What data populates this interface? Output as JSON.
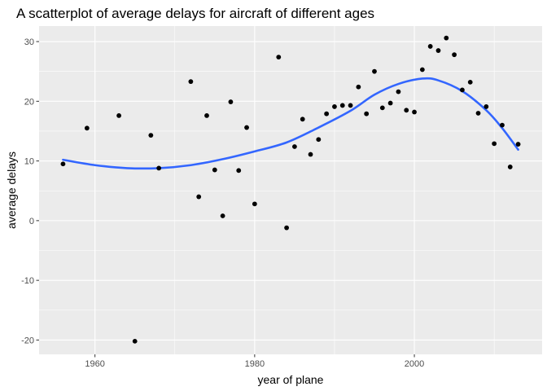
{
  "chart_data": {
    "type": "scatter",
    "title": "A scatterplot of average delays for aircraft of different ages",
    "xlabel": "year of plane",
    "ylabel": "average delays",
    "xlim": [
      1953,
      2016
    ],
    "ylim": [
      -22.4,
      32.6
    ],
    "x_ticks": [
      1960,
      1980,
      2000
    ],
    "x_tick_labels": [
      "1960",
      "1980",
      "2000"
    ],
    "y_ticks": [
      -20,
      -10,
      0,
      10,
      20,
      30
    ],
    "y_tick_labels": [
      "-20",
      "-10",
      "0",
      "10",
      "20",
      "30"
    ],
    "grid": true,
    "legend": "none",
    "points": [
      {
        "x": 1956,
        "y": 9.5
      },
      {
        "x": 1959,
        "y": 15.5
      },
      {
        "x": 1963,
        "y": 17.6
      },
      {
        "x": 1965,
        "y": -20.2
      },
      {
        "x": 1967,
        "y": 14.3
      },
      {
        "x": 1968,
        "y": 8.8
      },
      {
        "x": 1972,
        "y": 23.3
      },
      {
        "x": 1973,
        "y": 4.0
      },
      {
        "x": 1974,
        "y": 17.6
      },
      {
        "x": 1975,
        "y": 8.5
      },
      {
        "x": 1976,
        "y": 0.8
      },
      {
        "x": 1977,
        "y": 19.9
      },
      {
        "x": 1978,
        "y": 8.4
      },
      {
        "x": 1979,
        "y": 15.6
      },
      {
        "x": 1980,
        "y": 2.8
      },
      {
        "x": 1983,
        "y": 27.4
      },
      {
        "x": 1984,
        "y": -1.2
      },
      {
        "x": 1985,
        "y": 12.4
      },
      {
        "x": 1986,
        "y": 17.0
      },
      {
        "x": 1987,
        "y": 11.1
      },
      {
        "x": 1988,
        "y": 13.6
      },
      {
        "x": 1989,
        "y": 17.9
      },
      {
        "x": 1990,
        "y": 19.1
      },
      {
        "x": 1991,
        "y": 19.3
      },
      {
        "x": 1992,
        "y": 19.3
      },
      {
        "x": 1993,
        "y": 22.4
      },
      {
        "x": 1994,
        "y": 17.9
      },
      {
        "x": 1995,
        "y": 25.0
      },
      {
        "x": 1996,
        "y": 18.9
      },
      {
        "x": 1997,
        "y": 19.7
      },
      {
        "x": 1998,
        "y": 21.6
      },
      {
        "x": 1999,
        "y": 18.5
      },
      {
        "x": 2000,
        "y": 18.2
      },
      {
        "x": 2001,
        "y": 25.3
      },
      {
        "x": 2002,
        "y": 29.2
      },
      {
        "x": 2003,
        "y": 28.5
      },
      {
        "x": 2004,
        "y": 30.6
      },
      {
        "x": 2005,
        "y": 27.8
      },
      {
        "x": 2006,
        "y": 21.9
      },
      {
        "x": 2007,
        "y": 23.2
      },
      {
        "x": 2008,
        "y": 18.0
      },
      {
        "x": 2009,
        "y": 19.1
      },
      {
        "x": 2010,
        "y": 12.9
      },
      {
        "x": 2011,
        "y": 16.0
      },
      {
        "x": 2012,
        "y": 9.0
      },
      {
        "x": 2013,
        "y": 12.8
      }
    ],
    "smooth": [
      {
        "x": 1956,
        "y": 10.2
      },
      {
        "x": 1960,
        "y": 9.3
      },
      {
        "x": 1964,
        "y": 8.8
      },
      {
        "x": 1968,
        "y": 8.8
      },
      {
        "x": 1972,
        "y": 9.3
      },
      {
        "x": 1976,
        "y": 10.3
      },
      {
        "x": 1980,
        "y": 11.6
      },
      {
        "x": 1984,
        "y": 13.1
      },
      {
        "x": 1988,
        "y": 15.6
      },
      {
        "x": 1992,
        "y": 18.4
      },
      {
        "x": 1995,
        "y": 21.1
      },
      {
        "x": 1998,
        "y": 22.9
      },
      {
        "x": 2001,
        "y": 23.8
      },
      {
        "x": 2003,
        "y": 23.5
      },
      {
        "x": 2006,
        "y": 21.7
      },
      {
        "x": 2009,
        "y": 18.5
      },
      {
        "x": 2011,
        "y": 15.5
      },
      {
        "x": 2013,
        "y": 11.9
      }
    ],
    "colors": {
      "panel_background": "#ebebeb",
      "grid_major": "#ffffff",
      "points": "#000000",
      "smooth_line": "#3366ff",
      "tick_text": "#4d4d4d",
      "tick_mark": "#333333"
    }
  }
}
